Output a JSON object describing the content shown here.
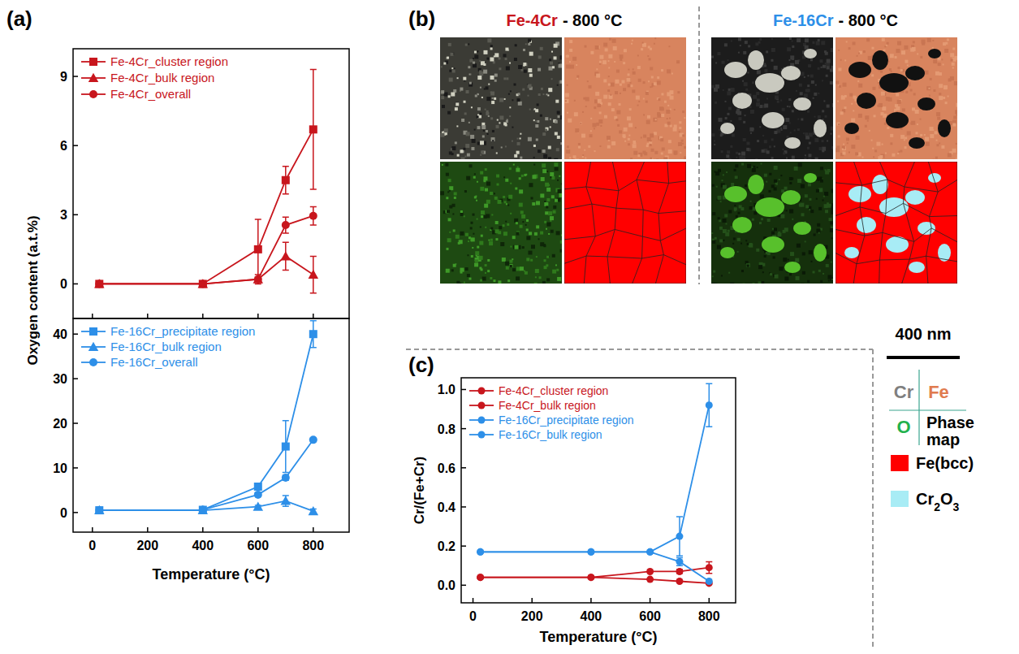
{
  "chart_data": [
    {
      "type": "line",
      "y_label": "Oxygen content (a.t.%)",
      "x": [
        25,
        400,
        600,
        700,
        800
      ],
      "xlim": [
        -70,
        930
      ],
      "xticks": [
        0,
        200,
        400,
        600,
        800
      ],
      "ylim": [
        -1.5,
        10.2
      ],
      "yticks": [
        0,
        3,
        6,
        9
      ],
      "tick_labels": "y",
      "legend": "upper left",
      "series": [
        {
          "name": "Fe-4Cr_cluster region",
          "color": "#c8161d",
          "marker": "square",
          "values": [
            0,
            0,
            1.5,
            4.5,
            6.7
          ],
          "errors": [
            0,
            0,
            1.3,
            0.6,
            2.6
          ]
        },
        {
          "name": "Fe-4Cr_bulk region",
          "color": "#c8161d",
          "marker": "triangle",
          "values": [
            0,
            0,
            0.2,
            1.2,
            0.4
          ],
          "errors": [
            0,
            0,
            0.2,
            0.6,
            0.8
          ]
        },
        {
          "name": "Fe-4Cr_overall",
          "color": "#c8161d",
          "marker": "circle",
          "values": [
            0,
            0,
            0.2,
            2.55,
            2.95
          ],
          "errors": [
            0,
            0,
            0.1,
            0.35,
            0.4
          ]
        }
      ]
    },
    {
      "type": "line",
      "x_label": "Temperature (°C)",
      "x": [
        25,
        400,
        600,
        700,
        800
      ],
      "xlim": [
        -70,
        930
      ],
      "xticks": [
        0,
        200,
        400,
        600,
        800
      ],
      "ylim": [
        -4.4,
        43.5
      ],
      "yticks": [
        0,
        10,
        20,
        30,
        40
      ],
      "legend": "upper left",
      "series": [
        {
          "name": "Fe-16Cr_precipitate region",
          "color": "#2d8fe8",
          "marker": "square",
          "values": [
            0.5,
            0.6,
            5.8,
            14.8,
            40
          ],
          "errors": [
            0,
            0,
            0.5,
            5.8,
            3
          ]
        },
        {
          "name": "Fe-16Cr_bulk region",
          "color": "#2d8fe8",
          "marker": "triangle",
          "values": [
            0.5,
            0.5,
            1.3,
            2.6,
            0.3
          ],
          "errors": [
            0,
            0,
            0.3,
            1.2,
            0.5
          ]
        },
        {
          "name": "Fe-16Cr_overall",
          "color": "#2d8fe8",
          "marker": "circle",
          "values": [
            0.5,
            0.6,
            4,
            7.8,
            16.3
          ],
          "errors": [
            0,
            0,
            0.3,
            0.6,
            0.4
          ]
        }
      ]
    },
    {
      "type": "line",
      "x_label": "Temperature (°C)",
      "y_label": "Cr/(Fe+Cr)",
      "x": [
        25,
        400,
        600,
        700,
        800
      ],
      "xlim": [
        -40,
        890
      ],
      "xticks": [
        0,
        200,
        400,
        600,
        800
      ],
      "ylim": [
        -0.09,
        1.06
      ],
      "yticks": [
        {
          "value": 0,
          "label": "0.0"
        },
        0.2,
        0.4,
        0.6,
        0.8,
        {
          "value": 1,
          "label": "1.0"
        }
      ],
      "legend": "upper left",
      "series": [
        {
          "name": "Fe-4Cr_cluster region",
          "color": "#c8161d",
          "marker": "circle",
          "values": [
            0.04,
            0.04,
            0.07,
            0.07,
            0.09
          ],
          "errors": [
            0,
            0,
            0,
            0.01,
            0.03
          ]
        },
        {
          "name": "Fe-4Cr_bulk region",
          "color": "#c8161d",
          "marker": "circle",
          "values": [
            0.04,
            0.04,
            0.03,
            0.02,
            0.01
          ],
          "errors": [
            0,
            0,
            0,
            0,
            0
          ]
        },
        {
          "name": "Fe-16Cr_precipitate region",
          "color": "#2d8fe8",
          "marker": "circle",
          "values": [
            0.17,
            0.17,
            0.17,
            0.25,
            0.92
          ],
          "errors": [
            0,
            0,
            0,
            0.1,
            0.11
          ]
        },
        {
          "name": "Fe-16Cr_bulk region",
          "color": "#2d8fe8",
          "marker": "circle",
          "values": [
            0.17,
            0.17,
            0.17,
            0.12,
            0.02
          ],
          "errors": [
            0,
            0,
            0,
            0.02,
            0
          ]
        }
      ]
    }
  ],
  "figure": {
    "panel_labels": [
      "(a)",
      "(b)",
      "(c)"
    ],
    "micrographs": {
      "panels": [
        {
          "alloy": "Fe-4Cr",
          "condition": "- 800 °C",
          "color": "#c8161d"
        },
        {
          "alloy": "Fe-16Cr",
          "condition": "- 800 °C",
          "color": "#2d8fe8"
        }
      ],
      "scale_bar": "400 nm",
      "key": [
        {
          "text": "Cr",
          "color": "#7f7f7f"
        },
        {
          "text": "Fe",
          "color": "#e07b4f"
        },
        {
          "text": "O",
          "color": "#22b14c"
        },
        {
          "text": "Phase map",
          "color": "#000000"
        }
      ],
      "phases": [
        {
          "name": "Fe(bcc)",
          "color": "#ff0000"
        },
        {
          "name": "Cr2O3",
          "color": "#a8ecf5"
        }
      ]
    }
  }
}
